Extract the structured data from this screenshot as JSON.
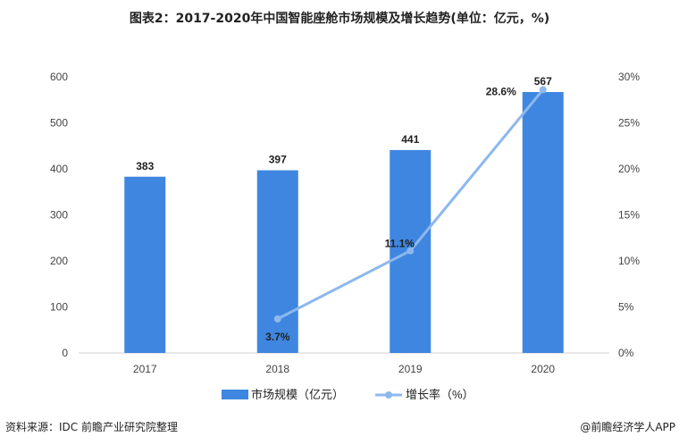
{
  "title": "图表2：2017-2020年中国智能座舱市场规模及增长趋势(单位：亿元，%)",
  "chart_data": {
    "type": "bar+line",
    "categories": [
      "2017",
      "2018",
      "2019",
      "2020"
    ],
    "series": [
      {
        "name": "市场规模（亿元）",
        "type": "bar",
        "axis": "left",
        "values": [
          383,
          397,
          441,
          567
        ],
        "labels": [
          "383",
          "397",
          "441",
          "567"
        ],
        "color": "#3f86e0"
      },
      {
        "name": "增长率（%）",
        "type": "line",
        "axis": "right",
        "values": [
          null,
          3.7,
          11.1,
          28.6
        ],
        "labels": [
          "",
          "3.7%",
          "11.1%",
          "28.6%"
        ],
        "color": "#8db8ee"
      }
    ],
    "ylim_left": [
      0,
      600
    ],
    "yticks_left": [
      "0",
      "100",
      "200",
      "300",
      "400",
      "500",
      "600"
    ],
    "ylim_right": [
      0,
      30
    ],
    "yticks_right": [
      "0%",
      "5%",
      "10%",
      "15%",
      "20%",
      "25%",
      "30%"
    ],
    "grid": false,
    "legend": "bottom-center"
  },
  "footer": {
    "source": "资料来源：IDC 前瞻产业研究院整理",
    "credit": "@前瞻经济学人APP"
  }
}
